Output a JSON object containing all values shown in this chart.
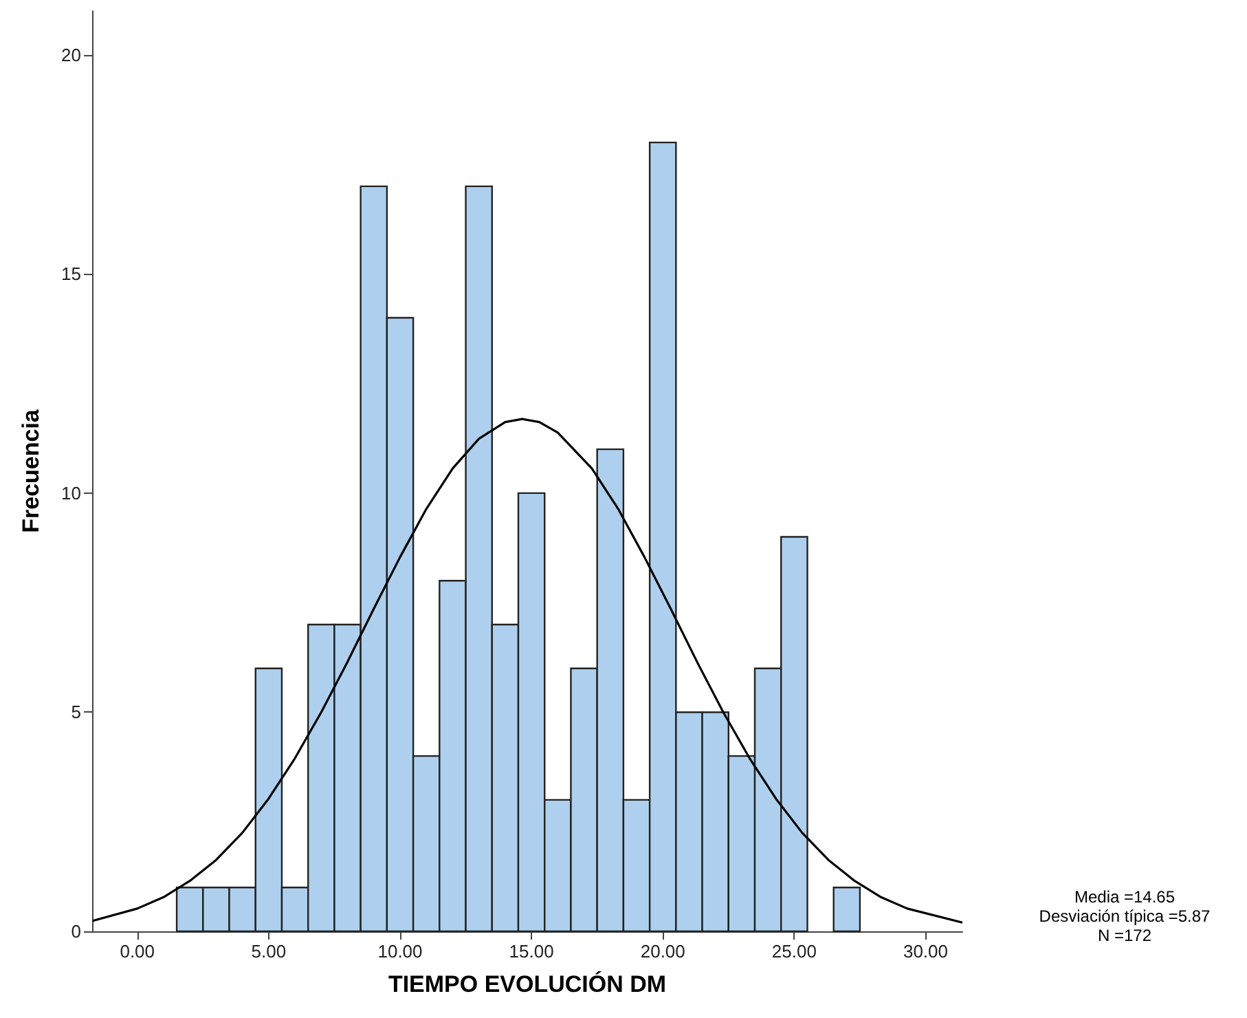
{
  "chart_data": {
    "type": "histogram",
    "xlabel": "TIEMPO EVOLUCIÓN DM",
    "ylabel": "Frecuencia",
    "bins": [
      1.5,
      2.5,
      3.5,
      4.5,
      5.5,
      6.5,
      7.5,
      8.5,
      9.5,
      10.5,
      11.5,
      12.5,
      13.5,
      14.5,
      15.5,
      16.5,
      17.5,
      18.5,
      19.5,
      20.5,
      21.5,
      22.5,
      23.5,
      24.5,
      25.5,
      26.5,
      27.5
    ],
    "values": [
      1,
      1,
      1,
      6,
      1,
      7,
      7,
      17,
      14,
      4,
      8,
      17,
      7,
      10,
      3,
      6,
      11,
      3,
      18,
      5,
      5,
      4,
      6,
      9,
      0,
      1
    ],
    "color": "#aed0ee",
    "series": [
      {
        "type": "line",
        "color": "#000000",
        "x": [
          -1.7,
          0,
          1,
          2,
          3,
          4,
          5,
          6,
          7,
          8,
          9,
          10,
          11,
          12,
          13,
          14,
          14.65,
          15.3,
          16,
          17.3,
          18.3,
          19.3,
          20.3,
          21.3,
          22.3,
          23.3,
          24.3,
          25.3,
          26.3,
          27.3,
          28.3,
          29.3,
          31.4
        ],
        "values": [
          0.24,
          0.52,
          0.78,
          1.15,
          1.63,
          2.25,
          3.03,
          3.95,
          5.0,
          6.15,
          7.36,
          8.54,
          9.64,
          10.56,
          11.24,
          11.62,
          11.69,
          11.62,
          11.38,
          10.56,
          9.64,
          8.54,
          7.36,
          6.15,
          5.0,
          3.95,
          3.03,
          2.25,
          1.63,
          1.15,
          0.78,
          0.52,
          0.2
        ]
      }
    ],
    "xlim": [
      -1.72,
      31.4
    ],
    "ylim": [
      0,
      21
    ],
    "xticks": [
      {
        "value": 0,
        "label": "0.00"
      },
      {
        "value": 5,
        "label": "5.00"
      },
      {
        "value": 10,
        "label": "10.00"
      },
      {
        "value": 15,
        "label": "15.00"
      },
      {
        "value": 20,
        "label": "20.00"
      },
      {
        "value": 25,
        "label": "25.00"
      },
      {
        "value": 30,
        "label": "30.00"
      }
    ],
    "yticks": [
      0,
      5,
      10,
      15,
      20
    ],
    "grid": false,
    "annotations": [
      "Media =14.65",
      "Desviación típica =5.87",
      "N =172"
    ]
  }
}
